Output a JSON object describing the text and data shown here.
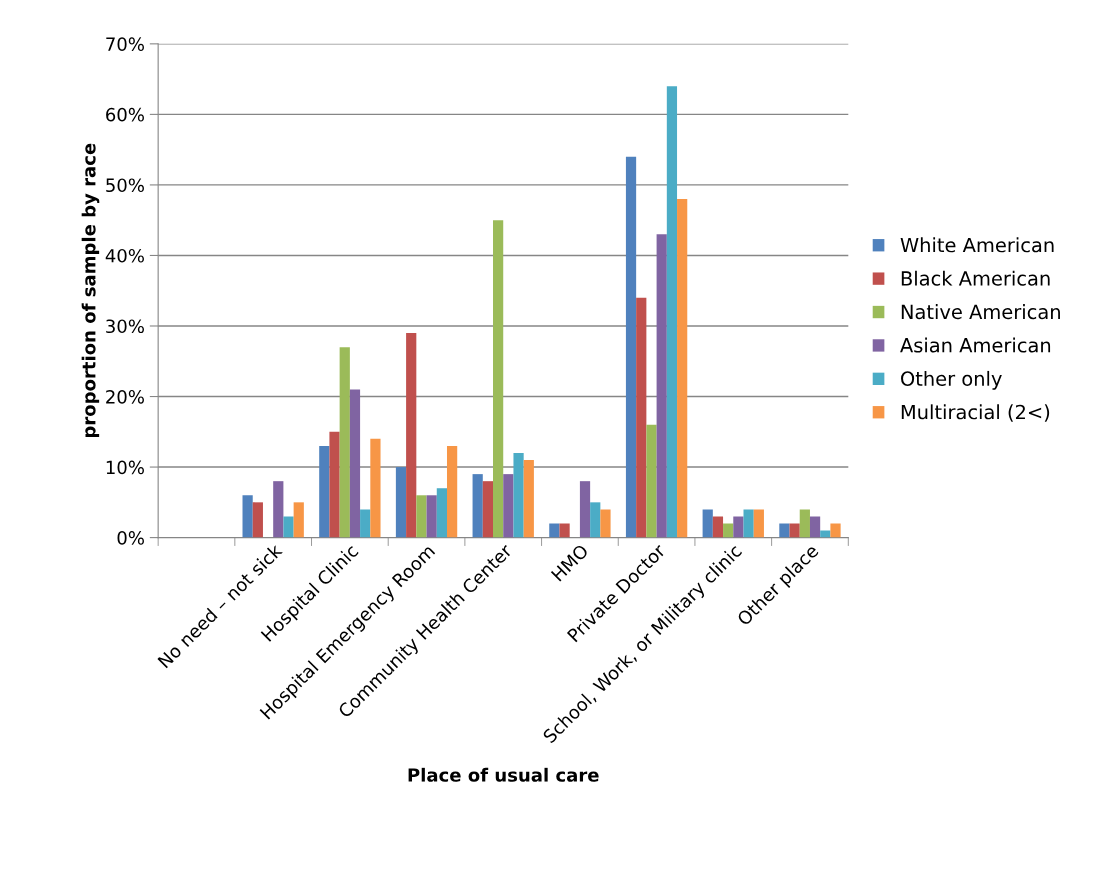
{
  "chart_data": {
    "type": "bar",
    "xlabel": "Place of usual care",
    "ylabel": "proportion of sample by race",
    "categories": [
      null,
      "No need – not sick",
      "Hospital Clinic",
      "Hospital Emergency Room",
      "Community Health Center",
      "HMO",
      "Private Doctor",
      "School, Work, or Military clinic",
      "Other place"
    ],
    "series": [
      {
        "name": "White American",
        "color": "#4f81bd",
        "values": [
          null,
          6,
          13,
          10,
          9,
          2,
          54,
          4,
          2
        ]
      },
      {
        "name": "Black American",
        "color": "#c0504d",
        "values": [
          null,
          5,
          15,
          29,
          8,
          2,
          34,
          3,
          2
        ]
      },
      {
        "name": "Native American",
        "color": "#9bbb59",
        "values": [
          null,
          0,
          27,
          6,
          45,
          0,
          16,
          2,
          4
        ]
      },
      {
        "name": "Asian American",
        "color": "#8064a2",
        "values": [
          null,
          8,
          21,
          6,
          9,
          8,
          43,
          3,
          3
        ]
      },
      {
        "name": "Other only",
        "color": "#4bacc6",
        "values": [
          null,
          3,
          4,
          7,
          12,
          5,
          64,
          4,
          1
        ]
      },
      {
        "name": "Multiracial (2<)",
        "color": "#f79646",
        "values": [
          null,
          5,
          14,
          13,
          11,
          4,
          48,
          4,
          2
        ]
      }
    ],
    "ylim": [
      0,
      70
    ],
    "yticks": [
      {
        "value": 0,
        "label": "0%"
      },
      {
        "value": 10,
        "label": "10%"
      },
      {
        "value": 20,
        "label": "20%"
      },
      {
        "value": 30,
        "label": "30%"
      },
      {
        "value": 40,
        "label": "40%"
      },
      {
        "value": 50,
        "label": "50%"
      },
      {
        "value": 60,
        "label": "60%"
      },
      {
        "value": 70,
        "label": "70%"
      }
    ],
    "grid": "y",
    "legend": "right"
  }
}
